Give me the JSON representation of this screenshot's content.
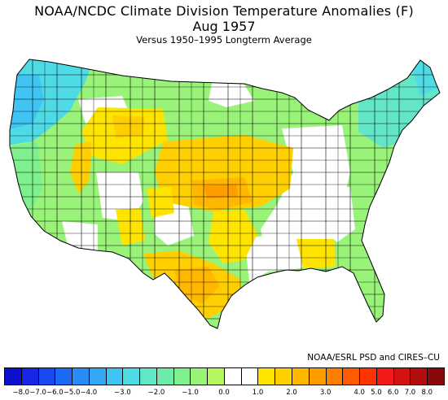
{
  "title": {
    "line1": "NOAA/NCDC Climate Division Temperature Anomalies (F)",
    "line2": "Aug 1957",
    "line3": "Versus 1950–1995 Longterm Average"
  },
  "credit": "NOAA/ESRL PSD and CIRES–CU",
  "legend": {
    "colors": [
      "#0f0fd0",
      "#1628e6",
      "#1a49f0",
      "#1f6af5",
      "#2a8cf6",
      "#32a8f6",
      "#3fc4f3",
      "#4fdbe6",
      "#62e6c7",
      "#6eeba9",
      "#7ef08e",
      "#98f378",
      "#b8f65e",
      "#ffffff",
      "#ffffff",
      "#ffe400",
      "#ffcf00",
      "#ffb700",
      "#ff9c00",
      "#ff7e00",
      "#ff5a00",
      "#ff3300",
      "#f21a1a",
      "#d41212",
      "#b30d0d",
      "#8c0808"
    ],
    "ticks": [
      {
        "label": "−8.0",
        "at": 1
      },
      {
        "label": "−7.0",
        "at": 2
      },
      {
        "label": "−6.0",
        "at": 3
      },
      {
        "label": "−5.0",
        "at": 4
      },
      {
        "label": "−4.0",
        "at": 5
      },
      {
        "label": "−3.0",
        "at": 7
      },
      {
        "label": "−2.0",
        "at": 9
      },
      {
        "label": "−1.0",
        "at": 11
      },
      {
        "label": "0.0",
        "at": 13
      },
      {
        "label": "1.0",
        "at": 15
      },
      {
        "label": "2.0",
        "at": 17
      },
      {
        "label": "3.0",
        "at": 19
      },
      {
        "label": "4.0",
        "at": 21
      },
      {
        "label": "5.0",
        "at": 22
      },
      {
        "label": "6.0",
        "at": 23
      },
      {
        "label": "7.0",
        "at": 24
      },
      {
        "label": "8.0",
        "at": 25
      }
    ]
  }
}
